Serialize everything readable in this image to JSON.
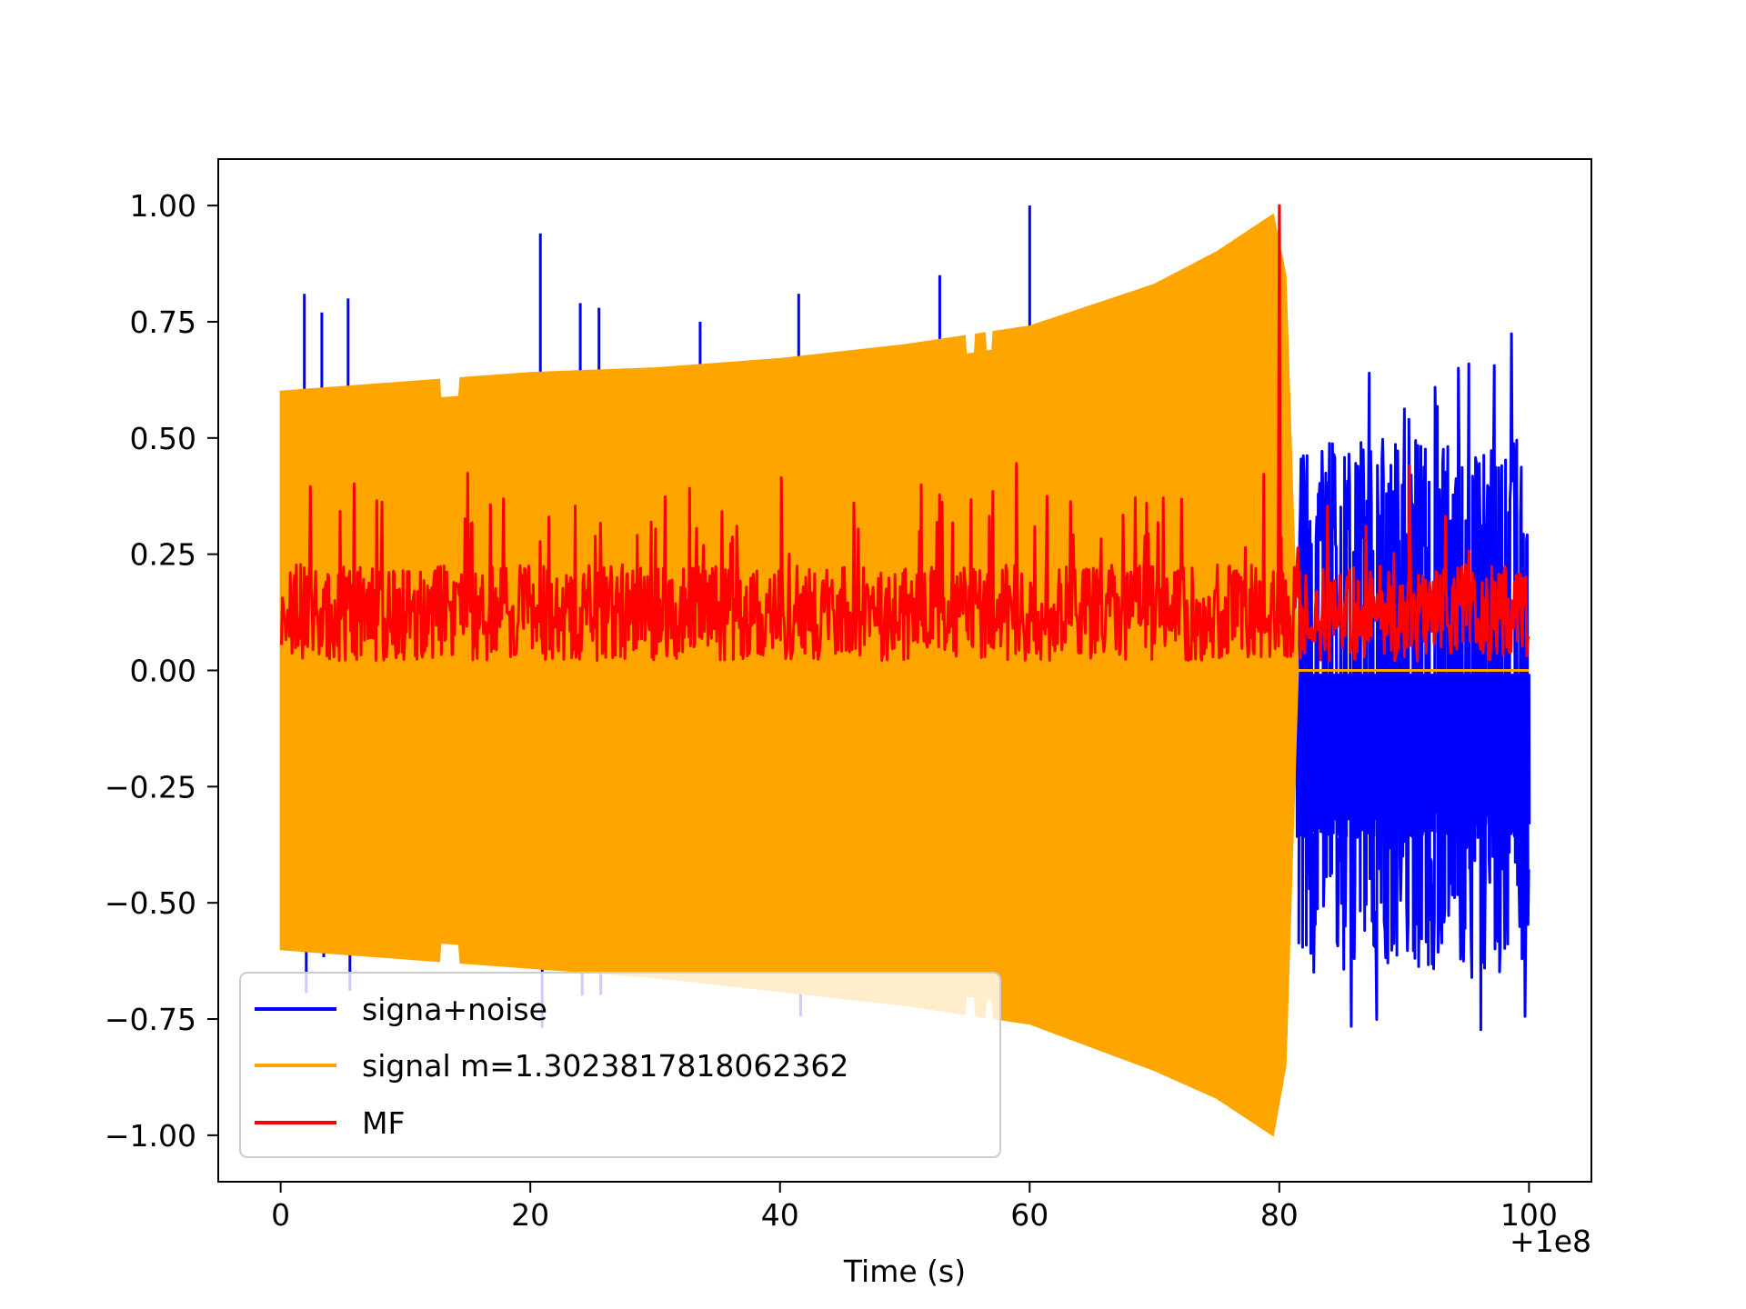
{
  "chart_data": {
    "type": "line",
    "title": "",
    "xlabel": "Time (s)",
    "ylabel": "",
    "x_offset_label": "+1e8",
    "xlim": [
      -5,
      105
    ],
    "ylim": [
      -1.1,
      1.1
    ],
    "xticks": [
      0,
      20,
      40,
      60,
      80,
      100
    ],
    "yticks": [
      1.0,
      0.75,
      0.5,
      0.25,
      0.0,
      -0.25,
      -0.5,
      -0.75,
      -1.0
    ],
    "xtick_labels": [
      "0",
      "20",
      "40",
      "60",
      "80",
      "100"
    ],
    "ytick_labels": [
      "1.00",
      "0.75",
      "0.50",
      "0.25",
      "0.00",
      "−0.25",
      "−0.50",
      "−0.75",
      "−1.00"
    ],
    "grid": false,
    "legend_position": "lower-left",
    "series": [
      {
        "name": "signa+noise",
        "color": "#0000ff",
        "description_values": {
          "x_range": [
            0,
            100
          ],
          "pre_merger_spikes": [
            {
              "x": 1.9,
              "y": 0.81
            },
            {
              "x": 3.3,
              "y": 0.77
            },
            {
              "x": 5.4,
              "y": 0.8
            },
            {
              "x": 20.8,
              "y": 0.94
            },
            {
              "x": 24.0,
              "y": 0.79
            },
            {
              "x": 25.5,
              "y": 0.78
            },
            {
              "x": 33.6,
              "y": 0.75
            },
            {
              "x": 41.5,
              "y": 0.81
            },
            {
              "x": 52.8,
              "y": 0.85
            },
            {
              "x": 60.0,
              "y": 1.0
            }
          ],
          "post_merger_envelope": {
            "x_range": [
              81.5,
              100
            ],
            "max": 0.76,
            "min": -0.83
          }
        }
      },
      {
        "name": "signal m=1.3023817818062362",
        "color": "#ffa500",
        "envelope": {
          "x": [
            0,
            10,
            20,
            30,
            40,
            50,
            60,
            70,
            75,
            79.5,
            80.5,
            81.5,
            100
          ],
          "upper": [
            0.6,
            0.62,
            0.64,
            0.65,
            0.67,
            0.7,
            0.74,
            0.83,
            0.9,
            0.98,
            0.85,
            0.0,
            0.0
          ],
          "lower": [
            -0.6,
            -0.62,
            -0.64,
            -0.66,
            -0.69,
            -0.72,
            -0.76,
            -0.86,
            -0.92,
            -1.0,
            -0.85,
            0.0,
            0.0
          ]
        }
      },
      {
        "name": "MF",
        "color": "#ff0000",
        "baseline": 0.12,
        "band": [
          0.02,
          0.3
        ],
        "peak": {
          "x": 80.0,
          "y": 1.0
        }
      }
    ]
  }
}
